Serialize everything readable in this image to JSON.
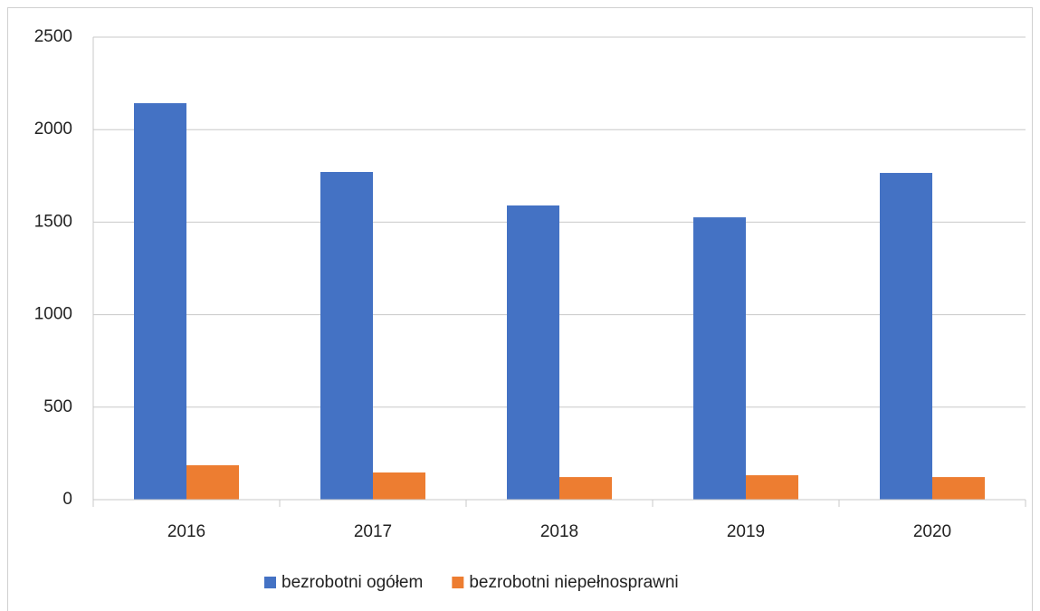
{
  "chart_data": {
    "type": "bar",
    "categories": [
      "2016",
      "2017",
      "2018",
      "2019",
      "2020"
    ],
    "series": [
      {
        "name": "bezrobotni ogółem",
        "color": "#4472c4",
        "values": [
          2143,
          1771,
          1590,
          1526,
          1766
        ]
      },
      {
        "name": "bezrobotni niepełnosprawni",
        "color": "#ed7d31",
        "values": [
          186,
          147,
          122,
          132,
          122
        ]
      }
    ],
    "ylim": [
      0,
      2500
    ],
    "yticks": [
      0,
      500,
      1000,
      1500,
      2000,
      2500
    ],
    "grid": true,
    "legend": "bottom"
  }
}
